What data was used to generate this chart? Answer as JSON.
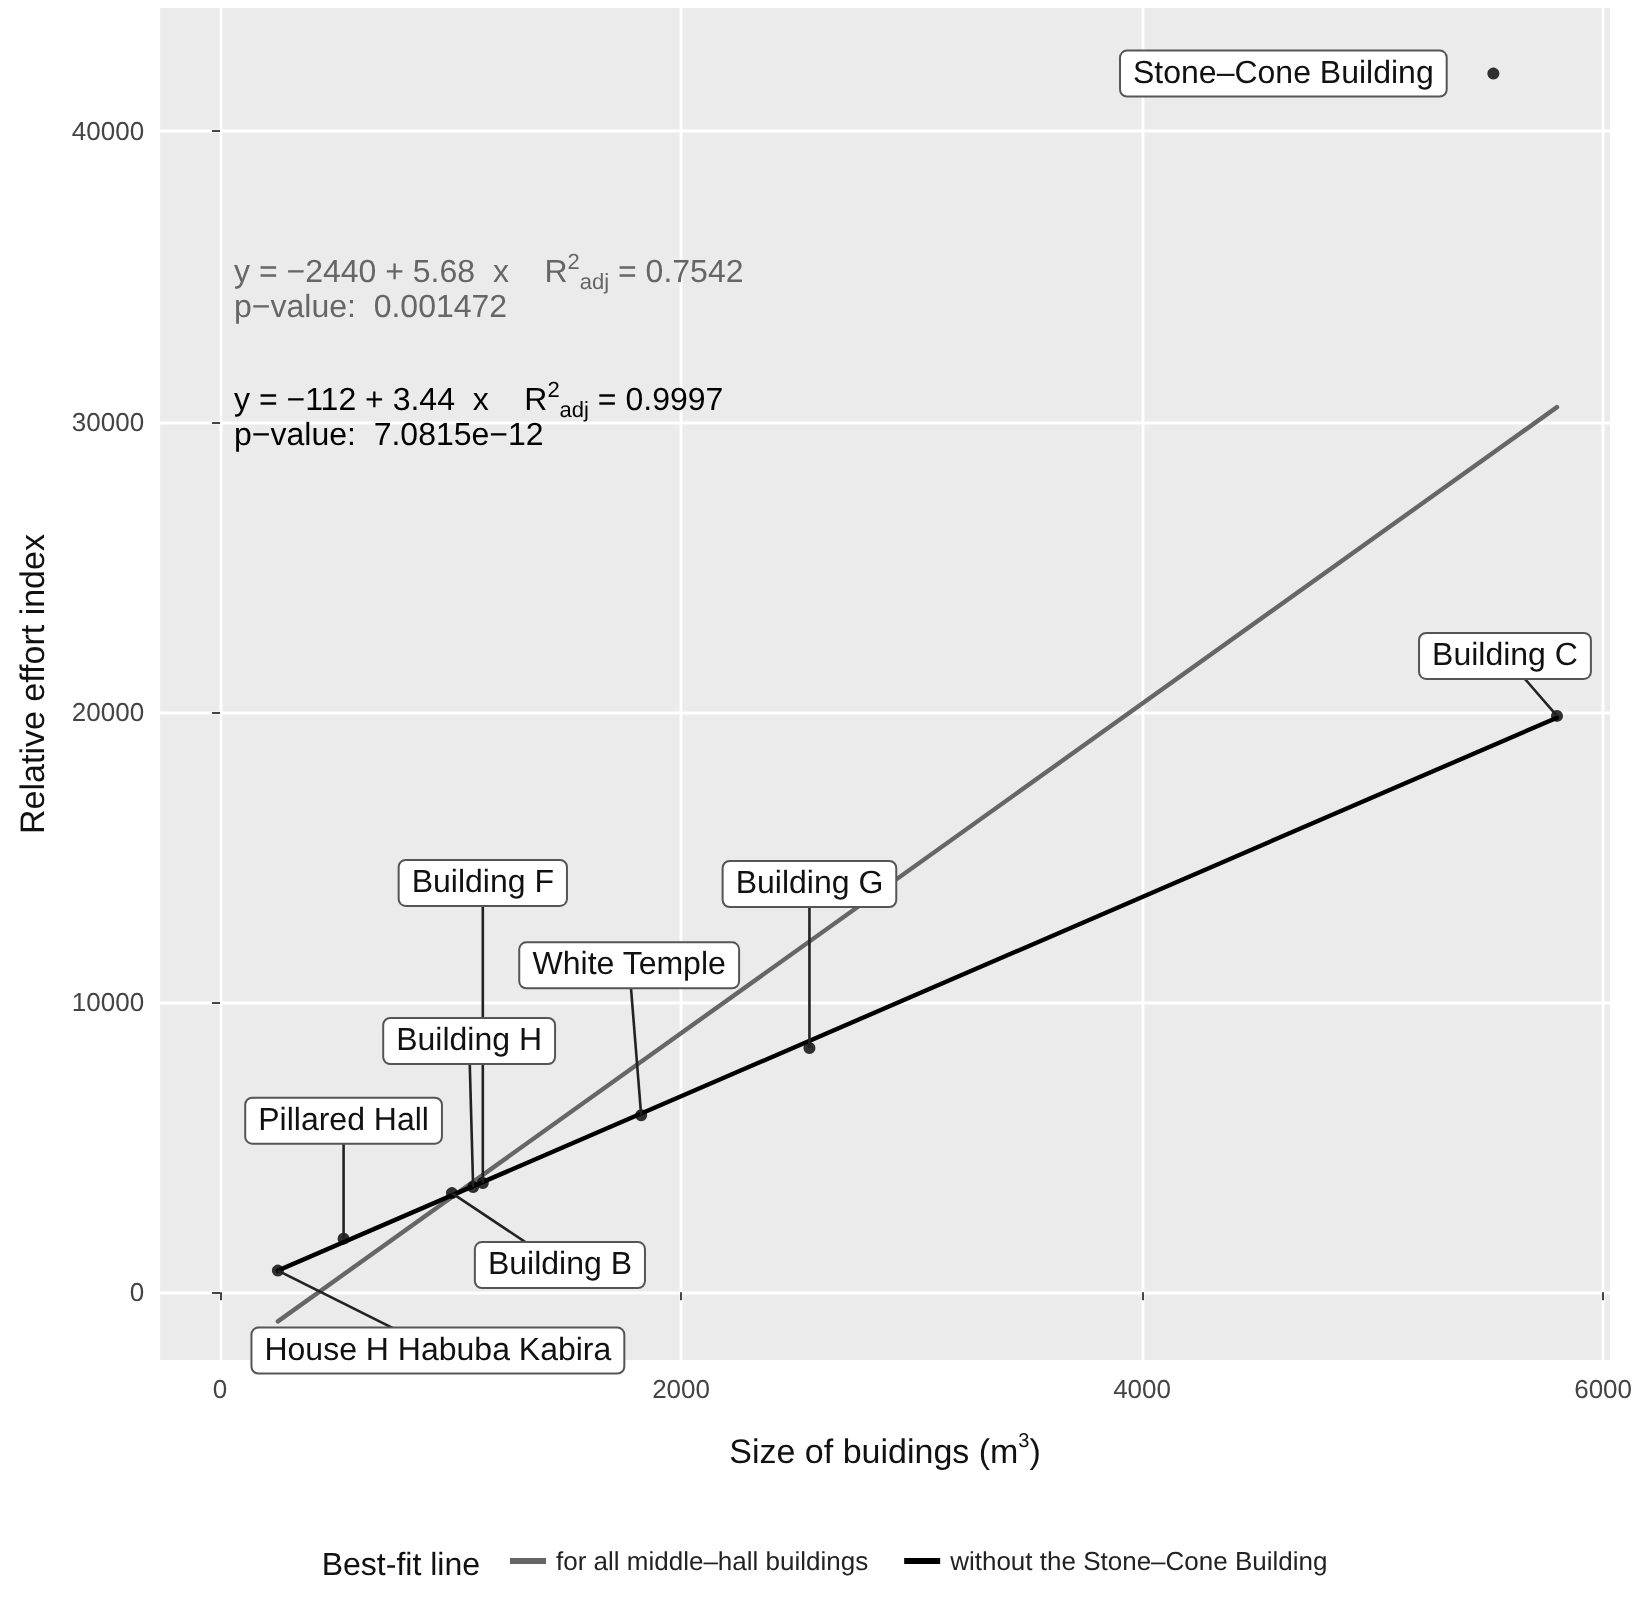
{
  "chart_data": {
    "type": "scatter",
    "xlabel": "Size of buidings (m$^{3}$)",
    "ylabel": "Relative effort index",
    "legend_title": "Best-fit line",
    "legend": "bottom",
    "grid": true,
    "xlim": [
      -260,
      6030
    ],
    "xticks": [
      0,
      2000,
      4000,
      6000
    ],
    "ylim": [
      -2330,
      44250
    ],
    "yticks": [
      0,
      10000,
      20000,
      30000,
      40000
    ],
    "series": [
      {
        "marker": "circle",
        "color": "#000000",
        "x": [
          251,
          536,
          1006,
          1098,
          1140,
          1827,
          2557,
          5800,
          5524
        ],
        "values": [
          750,
          1850,
          3420,
          3630,
          3770,
          6100,
          8420,
          19860,
          41990
        ]
      },
      {
        "type": "line",
        "name": "for all middle–hall buildings",
        "marker": "none",
        "color": "#666666",
        "x": [
          251,
          5800
        ],
        "values": [
          -1000,
          30500
        ]
      },
      {
        "type": "line",
        "name": "without the Stone–Cone Building",
        "marker": "none",
        "color": "#000000",
        "x": [
          251,
          5800
        ],
        "values": [
          750,
          19800
        ]
      }
    ],
    "annotations": [
      "y = −2440 + 5.68  x    R$^{2}$$_{adj}$ = 0.7542",
      "p−value:  0.001472",
      "y = −112 + 3.44  x    R$^{2}$$_{adj}$ = 0.9997",
      "p−value:  7.0815e−12",
      {
        "text": "House H Habuba Kabira",
        "x": 251,
        "y": 750
      },
      {
        "text": "Pillared Hall",
        "x": 536,
        "y": 1850
      },
      {
        "text": "Building B",
        "x": 1006,
        "y": 3420
      },
      {
        "text": "Building H",
        "x": 1098,
        "y": 3630
      },
      {
        "text": "Building F",
        "x": 1140,
        "y": 3770
      },
      {
        "text": "White Temple",
        "x": 1827,
        "y": 6100
      },
      {
        "text": "Building G",
        "x": 2557,
        "y": 8420
      },
      {
        "text": "Building C",
        "x": 5800,
        "y": 19860
      },
      {
        "text": "Stone–Cone Building",
        "x": 5524,
        "y": 41990
      }
    ]
  }
}
